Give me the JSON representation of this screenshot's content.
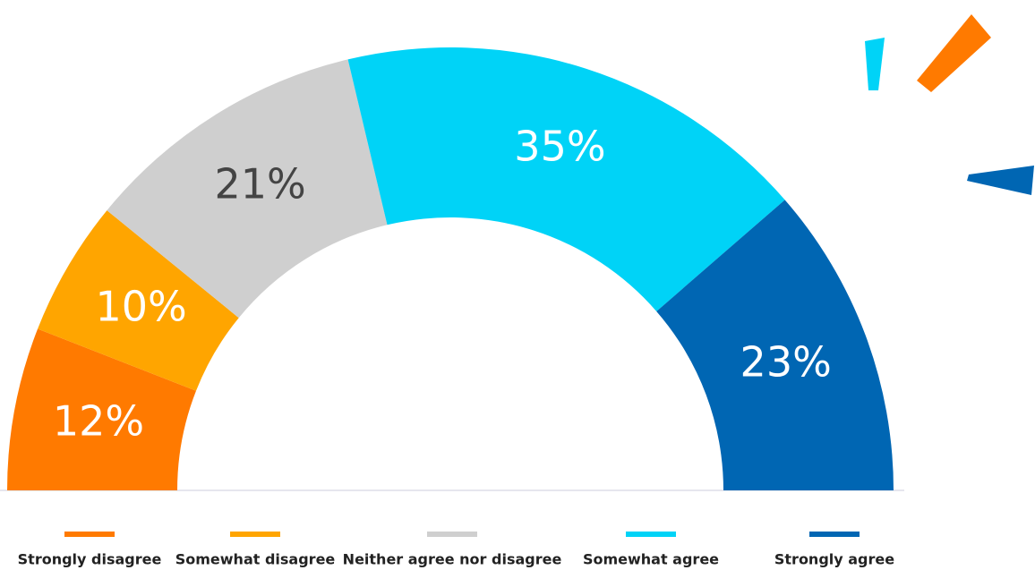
{
  "chart_data": {
    "type": "half-donut",
    "categories": [
      "Strongly disagree",
      "Somewhat disagree",
      "Neither agree nor disagree",
      "Somewhat agree",
      "Strongly agree"
    ],
    "values": [
      12,
      10,
      21,
      35,
      23
    ],
    "value_labels": [
      "12%",
      "10%",
      "21%",
      "35%",
      "23%"
    ],
    "colors": [
      "#ff7a00",
      "#ffa500",
      "#cfcfcf",
      "#00d3f7",
      "#0066b3"
    ]
  }
}
